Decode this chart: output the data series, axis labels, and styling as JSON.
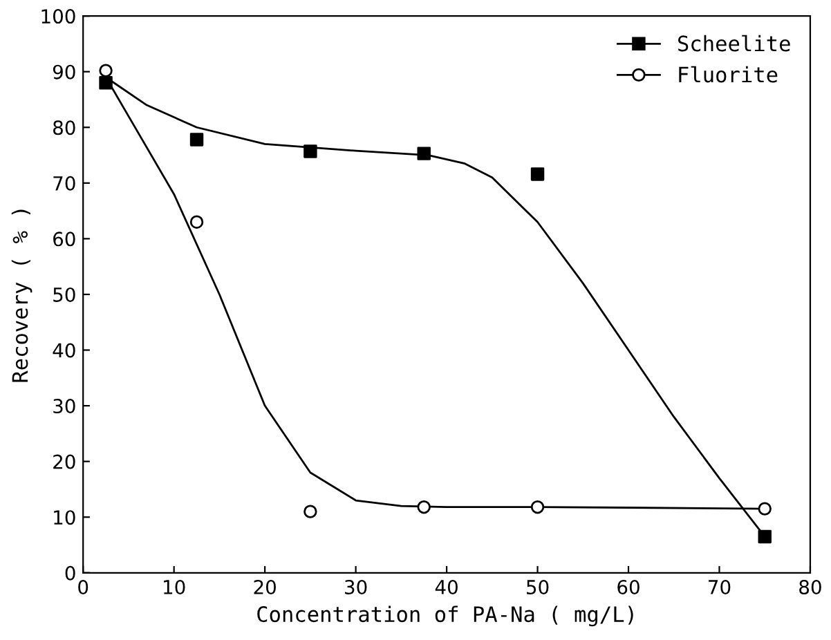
{
  "chart_data": {
    "type": "scatter",
    "xlabel": "Concentration of PA-Na ( mg/L)",
    "ylabel": "Recovery ( % )",
    "xlim": [
      0,
      80
    ],
    "xticks": [
      0,
      10,
      20,
      30,
      40,
      50,
      60,
      70,
      80
    ],
    "ylim": [
      0,
      100
    ],
    "yticks": [
      0,
      10,
      20,
      30,
      40,
      50,
      60,
      70,
      80,
      90,
      100
    ],
    "grid": false,
    "legend": "top right",
    "series": [
      {
        "name": "Scheelite",
        "marker": "square",
        "color": "#000000",
        "x": [
          2.5,
          12.5,
          25,
          37.5,
          50,
          75
        ],
        "values": [
          88,
          77.8,
          75.7,
          75.3,
          71.6,
          6.5
        ]
      },
      {
        "name": "Fluorite",
        "marker": "circle",
        "color": "#000000",
        "x": [
          2.5,
          12.5,
          25,
          37.5,
          50,
          75
        ],
        "values": [
          90.2,
          63,
          11,
          11.8,
          11.8,
          11.5
        ]
      },
      {
        "type": "line",
        "marker": "none",
        "color": "#000000",
        "x": [
          2.5,
          7,
          12.5,
          20,
          30,
          38,
          42,
          45,
          50,
          55,
          60,
          65,
          70,
          75
        ],
        "values": [
          89,
          84,
          80,
          77,
          75.8,
          75,
          73.5,
          71,
          63,
          52,
          40,
          28,
          17,
          6.5
        ]
      },
      {
        "type": "line",
        "marker": "none",
        "color": "#000000",
        "x": [
          2.5,
          5,
          10,
          15,
          20,
          25,
          30,
          35,
          40,
          50,
          60,
          75
        ],
        "values": [
          89,
          82,
          68,
          50,
          30,
          18,
          13,
          12,
          11.8,
          11.8,
          11.7,
          11.5
        ]
      }
    ]
  }
}
